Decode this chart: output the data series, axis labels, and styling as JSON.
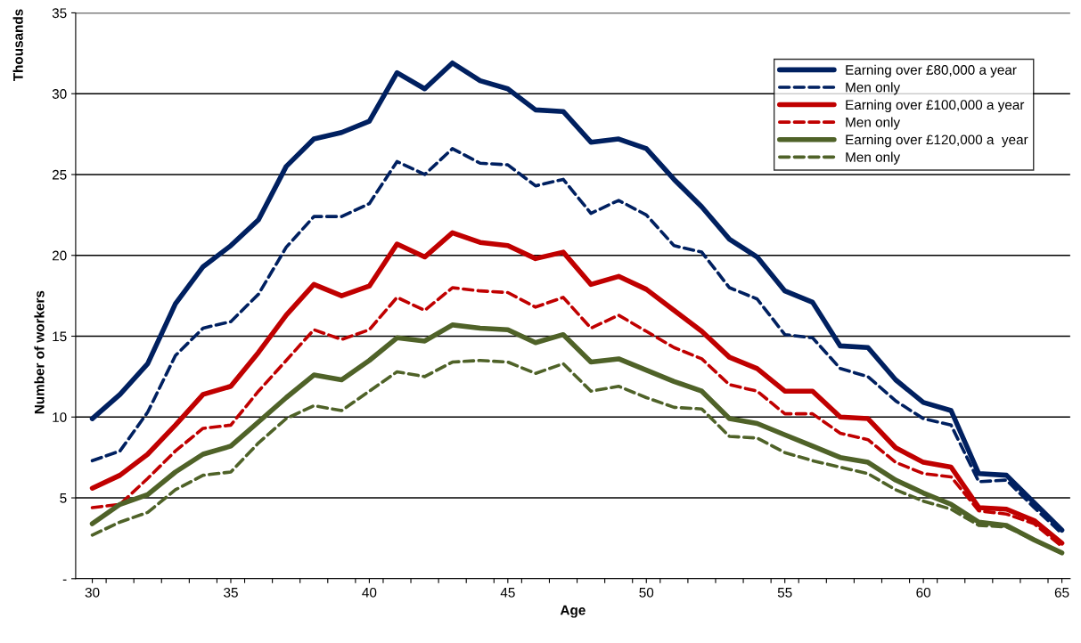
{
  "chart_data": {
    "type": "line",
    "xlabel": "Age",
    "ylabel": "Number of workers",
    "y2label": "Thousands",
    "x": [
      30,
      31,
      32,
      33,
      34,
      35,
      36,
      37,
      38,
      39,
      40,
      41,
      42,
      43,
      44,
      45,
      46,
      47,
      48,
      49,
      50,
      51,
      52,
      53,
      54,
      55,
      56,
      57,
      58,
      59,
      60,
      61,
      62,
      63,
      64,
      65
    ],
    "xlim": [
      29.4,
      65.3
    ],
    "xticks": [
      30,
      {
        "value": 30.5,
        "label": null
      },
      {
        "value": 31.5,
        "label": null
      },
      {
        "value": 32.5,
        "label": null
      },
      {
        "value": 33.5,
        "label": null
      },
      {
        "value": 34.5,
        "label": null
      },
      35,
      {
        "value": 35.5,
        "label": null
      },
      {
        "value": 36.5,
        "label": null
      },
      {
        "value": 37.5,
        "label": null
      },
      {
        "value": 38.5,
        "label": null
      },
      {
        "value": 39.5,
        "label": null
      },
      40,
      {
        "value": 40.5,
        "label": null
      },
      {
        "value": 41.5,
        "label": null
      },
      {
        "value": 42.5,
        "label": null
      },
      {
        "value": 43.5,
        "label": null
      },
      {
        "value": 44.5,
        "label": null
      },
      45,
      {
        "value": 45.5,
        "label": null
      },
      {
        "value": 46.5,
        "label": null
      },
      {
        "value": 47.5,
        "label": null
      },
      {
        "value": 48.5,
        "label": null
      },
      {
        "value": 49.5,
        "label": null
      },
      50,
      {
        "value": 50.5,
        "label": null
      },
      {
        "value": 51.5,
        "label": null
      },
      {
        "value": 52.5,
        "label": null
      },
      {
        "value": 53.5,
        "label": null
      },
      {
        "value": 54.5,
        "label": null
      },
      55,
      {
        "value": 55.5,
        "label": null
      },
      {
        "value": 56.5,
        "label": null
      },
      {
        "value": 57.5,
        "label": null
      },
      {
        "value": 58.5,
        "label": null
      },
      {
        "value": 59.5,
        "label": null
      },
      60,
      {
        "value": 60.5,
        "label": null
      },
      {
        "value": 61.5,
        "label": null
      },
      {
        "value": 62.5,
        "label": null
      },
      {
        "value": 63.5,
        "label": null
      },
      {
        "value": 64.5,
        "label": null
      },
      65
    ],
    "ylim": [
      0,
      35
    ],
    "yticks": [
      {
        "value": 0,
        "label": "-"
      },
      5,
      10,
      15,
      20,
      25,
      30,
      35
    ],
    "grid": "y",
    "legend": "top right",
    "series": [
      {
        "name": "Earning over £80,000 a year",
        "color": "#002060",
        "line_style": "solid",
        "values": [
          9.9,
          11.4,
          13.3,
          17.0,
          19.3,
          20.6,
          22.2,
          25.5,
          27.2,
          27.6,
          28.3,
          31.3,
          30.3,
          31.9,
          30.8,
          30.3,
          29.0,
          28.9,
          27.0,
          27.2,
          26.6,
          24.7,
          23.0,
          21.0,
          19.9,
          17.8,
          17.1,
          14.4,
          14.3,
          12.3,
          10.9,
          10.4,
          6.5,
          6.4,
          4.7,
          3.0
        ]
      },
      {
        "name": "Men only",
        "color": "#002060",
        "line_style": "dashed",
        "values": [
          7.3,
          7.9,
          10.3,
          13.8,
          15.5,
          15.9,
          17.6,
          20.5,
          22.4,
          22.4,
          23.2,
          25.8,
          25.0,
          26.6,
          25.7,
          25.6,
          24.3,
          24.7,
          22.6,
          23.4,
          22.5,
          20.6,
          20.2,
          18.0,
          17.3,
          15.1,
          14.9,
          13.0,
          12.5,
          11.0,
          9.9,
          9.5,
          6.0,
          6.1,
          4.4,
          2.8
        ]
      },
      {
        "name": "Earning over £100,000 a year",
        "color": "#c00000",
        "line_style": "solid",
        "values": [
          5.6,
          6.4,
          7.7,
          9.5,
          11.4,
          11.9,
          14.0,
          16.3,
          18.2,
          17.5,
          18.1,
          20.7,
          19.9,
          21.4,
          20.8,
          20.6,
          19.8,
          20.2,
          18.2,
          18.7,
          17.9,
          16.6,
          15.3,
          13.7,
          13.0,
          11.6,
          11.6,
          10.0,
          9.9,
          8.1,
          7.2,
          6.9,
          4.4,
          4.3,
          3.6,
          2.2
        ]
      },
      {
        "name": "Men only",
        "color": "#c00000",
        "line_style": "dashed",
        "values": [
          4.4,
          4.6,
          6.2,
          7.9,
          9.3,
          9.5,
          11.6,
          13.5,
          15.4,
          14.8,
          15.4,
          17.4,
          16.6,
          18.0,
          17.8,
          17.7,
          16.8,
          17.4,
          15.5,
          16.3,
          15.3,
          14.3,
          13.6,
          12.0,
          11.6,
          10.2,
          10.2,
          9.0,
          8.6,
          7.2,
          6.5,
          6.3,
          4.2,
          4.0,
          3.4,
          2.0
        ]
      },
      {
        "name": "Earning over £120,000 a  year",
        "color": "#4f6228",
        "line_style": "solid",
        "values": [
          3.4,
          4.6,
          5.2,
          6.6,
          7.7,
          8.2,
          9.7,
          11.2,
          12.6,
          12.3,
          13.5,
          14.9,
          14.7,
          15.7,
          15.5,
          15.4,
          14.6,
          15.1,
          13.4,
          13.6,
          12.9,
          12.2,
          11.6,
          9.9,
          9.6,
          8.9,
          8.2,
          7.5,
          7.2,
          6.1,
          5.3,
          4.6,
          3.5,
          3.3,
          2.4,
          1.6
        ]
      },
      {
        "name": "Men only",
        "color": "#4f6228",
        "line_style": "dashed",
        "values": [
          2.7,
          3.5,
          4.1,
          5.5,
          6.4,
          6.6,
          8.4,
          9.9,
          10.7,
          10.4,
          11.6,
          12.8,
          12.5,
          13.4,
          13.5,
          13.4,
          12.7,
          13.3,
          11.6,
          11.9,
          11.2,
          10.6,
          10.5,
          8.8,
          8.7,
          7.8,
          7.3,
          6.9,
          6.5,
          5.5,
          4.8,
          4.3,
          3.3,
          3.2,
          2.4,
          1.6
        ]
      }
    ]
  }
}
